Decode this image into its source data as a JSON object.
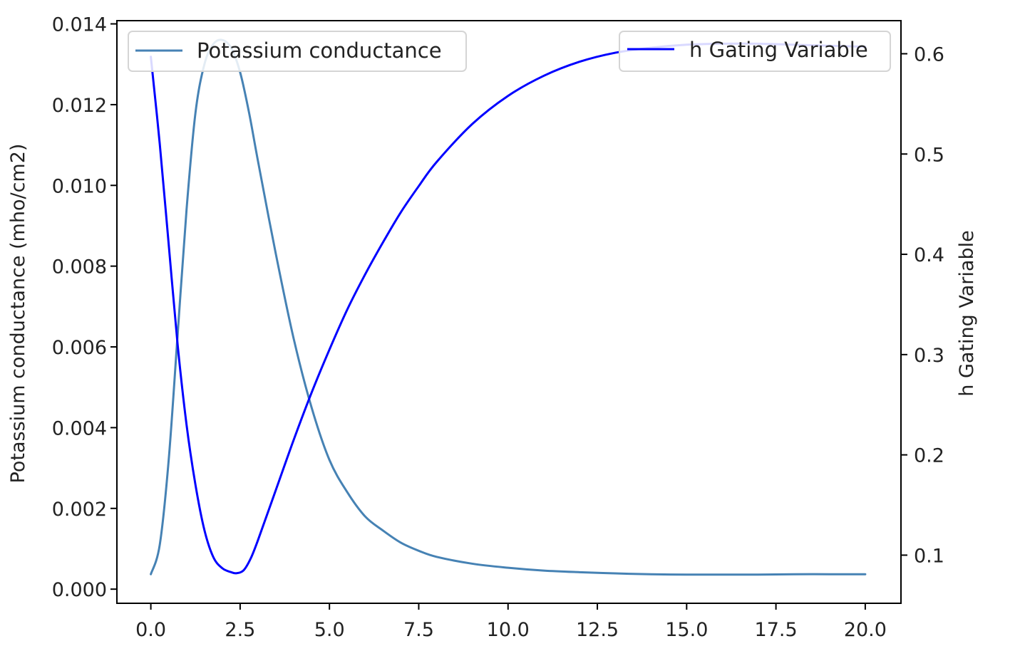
{
  "chart_data": {
    "type": "line",
    "title": "",
    "xlabel": "",
    "xlim": [
      -0.95,
      21.0
    ],
    "xticks": [
      0.0,
      2.5,
      5.0,
      7.5,
      10.0,
      12.5,
      15.0,
      17.5,
      20.0
    ],
    "xtick_labels": [
      "0.0",
      "2.5",
      "5.0",
      "7.5",
      "10.0",
      "12.5",
      "15.0",
      "17.5",
      "20.0"
    ],
    "y_left": {
      "label": "Potassium conductance (mho/cm2)",
      "lim": [
        -0.00035,
        0.01408
      ],
      "ticks": [
        0.0,
        0.002,
        0.004,
        0.006,
        0.008,
        0.01,
        0.012,
        0.014
      ],
      "tick_labels": [
        "0.000",
        "0.002",
        "0.004",
        "0.006",
        "0.008",
        "0.010",
        "0.012",
        "0.014"
      ]
    },
    "y_right": {
      "label": "h Gating Variable",
      "lim": [
        0.052,
        0.633
      ],
      "ticks": [
        0.1,
        0.2,
        0.3,
        0.4,
        0.5,
        0.6
      ],
      "tick_labels": [
        "0.1",
        "0.2",
        "0.3",
        "0.4",
        "0.5",
        "0.6"
      ]
    },
    "grid": false,
    "series": [
      {
        "name": "Potassium conductance",
        "axis": "left",
        "color": "#4682b4",
        "legend_position": "top-left",
        "x": [
          0,
          0.25,
          0.5,
          0.75,
          1.0,
          1.25,
          1.5,
          1.75,
          2.0,
          2.25,
          2.5,
          2.75,
          3.0,
          3.5,
          4.0,
          4.5,
          5.0,
          5.5,
          6.0,
          6.5,
          7.0,
          7.5,
          8.0,
          9.0,
          10.0,
          11.0,
          12.0,
          13.0,
          14.0,
          15.0,
          16.0,
          17.0,
          18.0,
          19.0,
          20.0
        ],
        "y": [
          0.00037,
          0.0011,
          0.0032,
          0.0063,
          0.0094,
          0.0118,
          0.013,
          0.0135,
          0.0136,
          0.0134,
          0.0128,
          0.0118,
          0.0106,
          0.0083,
          0.0062,
          0.0045,
          0.0032,
          0.0024,
          0.0018,
          0.00145,
          0.00115,
          0.00095,
          0.0008,
          0.00063,
          0.00053,
          0.00046,
          0.00042,
          0.00039,
          0.00037,
          0.00036,
          0.00036,
          0.00036,
          0.00037,
          0.00037,
          0.00037
        ]
      },
      {
        "name": "h Gating Variable",
        "axis": "right",
        "color": "#0000ff",
        "legend_position": "top-right",
        "x": [
          0,
          0.25,
          0.5,
          0.75,
          1.0,
          1.25,
          1.5,
          1.75,
          2.0,
          2.25,
          2.4,
          2.6,
          2.8,
          3.0,
          3.5,
          4.0,
          4.5,
          5.0,
          5.5,
          6.0,
          6.5,
          7.0,
          7.5,
          8.0,
          9.0,
          10.0,
          11.0,
          12.0,
          13.0,
          14.0,
          15.0,
          16.0,
          17.0,
          18.0,
          19.0,
          20.0
        ],
        "y": [
          0.597,
          0.51,
          0.41,
          0.31,
          0.23,
          0.17,
          0.125,
          0.098,
          0.087,
          0.083,
          0.082,
          0.085,
          0.097,
          0.115,
          0.165,
          0.215,
          0.262,
          0.305,
          0.345,
          0.38,
          0.412,
          0.442,
          0.468,
          0.492,
          0.53,
          0.558,
          0.578,
          0.592,
          0.601,
          0.606,
          0.609,
          0.61,
          0.61,
          0.609,
          0.608,
          0.607
        ]
      }
    ]
  }
}
